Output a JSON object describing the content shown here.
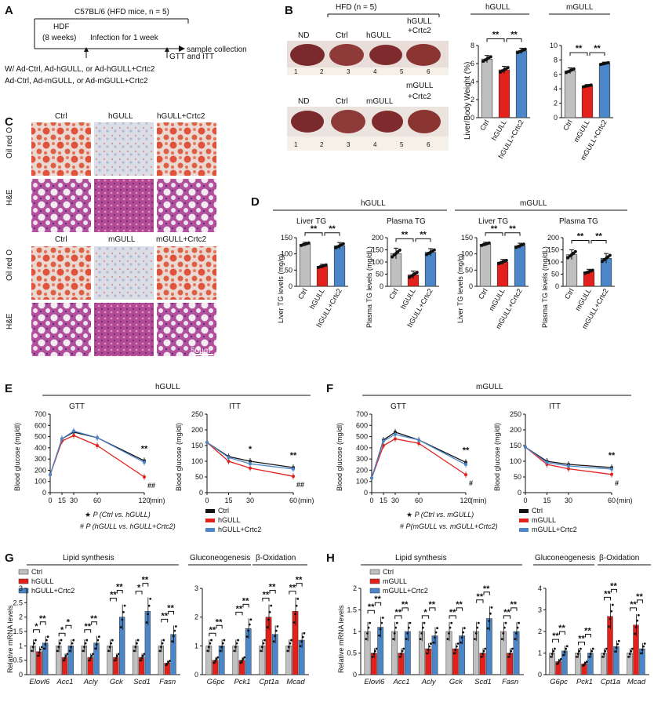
{
  "colors": {
    "ctrl": "#c0c0c0",
    "red": "#e3201b",
    "blue": "#4a86c8",
    "black": "#111111"
  },
  "panelA": {
    "label": "A",
    "strain": "C57BL/6 (HFD mice, n = 5)",
    "hdf": "HDF",
    "weeks": "(8 weeks)",
    "infection": "Infection for 1 week",
    "collection": "sample collection",
    "tests": "GTT and ITT",
    "groups1": "W/ Ad-Ctrl, Ad-hGULL, or Ad-hGULL+Crtc2",
    "groups2": "Ad-Ctrl, Ad-mGULL, or Ad-mGULL+Crtc2"
  },
  "panelB": {
    "label": "B",
    "header": "HFD (n = 5)",
    "row1": [
      "ND",
      "Ctrl",
      "hGULL",
      "hGULL",
      "+Crtc2"
    ],
    "row2": [
      "ND",
      "Ctrl",
      "mGULL",
      "mGULL",
      "+Crtc2"
    ],
    "ruler": [
      "1",
      "2",
      "3",
      "4",
      "5",
      "6"
    ],
    "ylabel": "Liver/Body Weight (%)",
    "sig": "**"
  },
  "panelC": {
    "label": "C",
    "top_cols": [
      "Ctrl",
      "hGULL",
      "hGULL+Crtc2"
    ],
    "bottom_cols": [
      "Ctrl",
      "mGULL",
      "mGULL+Crtc2"
    ],
    "rows": [
      "Oil red O",
      "H&E"
    ],
    "scale": "50μm"
  },
  "panelD": {
    "label": "D",
    "groupH": "hGULL",
    "groupM": "mGULL",
    "liver": "Liver TG",
    "plasma": "Plasma TG",
    "ylab_liver": "Liver TG levels (mg/g)",
    "ylab_plasma": "Plasma TG levels (mg/dL)"
  },
  "panelE": {
    "label": "E",
    "group": "hGULL",
    "gtt": "GTT",
    "itt": "ITT",
    "ylabel": "Blood glucose (mg/dl)",
    "note1": "P (Ctrl vs. hGULL)",
    "note2": "P (hGULL vs. hGULL+Crtc2)",
    "legend": [
      "Ctrl",
      "hGULL",
      "hGULL+Crtc2"
    ]
  },
  "panelF": {
    "label": "F",
    "group": "mGULL",
    "gtt": "GTT",
    "itt": "ITT",
    "ylabel": "Blood glucose (mg/dl)",
    "note1": "P (Ctrl vs. mGULL)",
    "note2": "P(mGULL vs. mGULL+Crtc2)",
    "legend": [
      "Ctrl",
      "mGULL",
      "mGULL+Crtc2"
    ]
  },
  "panelG": {
    "label": "G",
    "legend": [
      "Ctrl",
      "hGULL",
      "hGULL+Crtc2"
    ]
  },
  "panelH": {
    "label": "H",
    "legend": [
      "Ctrl",
      "mGULL",
      "mGULL+Crtc2"
    ]
  },
  "mrna": {
    "ylabel": "Relative mRNA levels",
    "lipid": "Lipid synthesis",
    "gluco": "Gluconeogenesis",
    "box": "β-Oxidation"
  },
  "chart_data": [
    {
      "id": "B-hGULL",
      "type": "bar",
      "title": "hGULL",
      "ylabel": "Liver/Body Weight (%)",
      "categories": [
        "Ctrl",
        "hGULL",
        "hGULL+Crtc2"
      ],
      "values": [
        6.5,
        5.3,
        7.4
      ],
      "errors": [
        0.4,
        0.4,
        0.3
      ],
      "ylim": [
        0,
        8
      ],
      "yticks": [
        0,
        2,
        4,
        6,
        8
      ]
    },
    {
      "id": "B-mGULL",
      "type": "bar",
      "title": "mGULL",
      "ylabel": "",
      "categories": [
        "Ctrl",
        "mGULL",
        "mGULL+Crtc2"
      ],
      "values": [
        6.5,
        4.4,
        7.5
      ],
      "errors": [
        0.4,
        0.2,
        0.2
      ],
      "ylim": [
        0,
        10
      ],
      "yticks": [
        0,
        2,
        4,
        6,
        8,
        10
      ]
    },
    {
      "id": "D-hLiver",
      "type": "bar",
      "title": "Liver TG",
      "ylabel": "Liver TG levels (mg/g)",
      "categories": [
        "Ctrl",
        "hGULL",
        "hGULL+Crtc2"
      ],
      "values": [
        130,
        62,
        125
      ],
      "errors": [
        6,
        6,
        10
      ],
      "ylim": [
        0,
        150
      ],
      "yticks": [
        0,
        50,
        100,
        150
      ]
    },
    {
      "id": "D-hPlasma",
      "type": "bar",
      "title": "Plasma TG",
      "ylabel": "Plasma TG levels (mg/dL)",
      "categories": [
        "Ctrl",
        "hGULL",
        "hGULL+Crtc2"
      ],
      "values": [
        135,
        47,
        140
      ],
      "errors": [
        22,
        16,
        15
      ],
      "ylim": [
        0,
        200
      ],
      "yticks": [
        0,
        50,
        100,
        150,
        200
      ]
    },
    {
      "id": "D-mLiver",
      "type": "bar",
      "title": "Liver TG",
      "ylabel": "Liver TG levels (mg/g)",
      "categories": [
        "Ctrl",
        "mGULL",
        "mGULL+Crtc2"
      ],
      "values": [
        130,
        75,
        125
      ],
      "errors": [
        6,
        8,
        8
      ],
      "ylim": [
        0,
        150
      ],
      "yticks": [
        0,
        50,
        100,
        150
      ]
    },
    {
      "id": "D-mPlasma",
      "type": "bar",
      "title": "Plasma TG",
      "ylabel": "Plasma TG levels (mg/dL)",
      "categories": [
        "Ctrl",
        "mGULL",
        "mGULL+Crtc2"
      ],
      "values": [
        130,
        60,
        115
      ],
      "errors": [
        20,
        10,
        20
      ],
      "ylim": [
        0,
        200
      ],
      "yticks": [
        0,
        50,
        100,
        150,
        200
      ]
    },
    {
      "id": "E-GTT",
      "type": "line",
      "title": "GTT",
      "xlabel": "(min)",
      "ylabel": "Blood glucose (mg/dl)",
      "x": [
        0,
        15,
        30,
        60,
        120
      ],
      "xticks": [
        0,
        15,
        30,
        60,
        120
      ],
      "ylim": [
        0,
        700
      ],
      "yticks": [
        0,
        100,
        200,
        300,
        400,
        500,
        600,
        700
      ],
      "series": [
        {
          "name": "Ctrl",
          "values": [
            160,
            480,
            540,
            490,
            285
          ]
        },
        {
          "name": "hGULL",
          "values": [
            160,
            460,
            510,
            420,
            140
          ]
        },
        {
          "name": "hGULL+Crtc2",
          "values": [
            160,
            480,
            550,
            490,
            270
          ]
        }
      ],
      "annotations": [
        {
          "x": 120,
          "text": "**"
        },
        {
          "x": 120,
          "text": "##"
        }
      ]
    },
    {
      "id": "E-ITT",
      "type": "line",
      "title": "ITT",
      "xlabel": "(min)",
      "ylabel": "Blood glucose (mg/dl)",
      "x": [
        0,
        15,
        30,
        60
      ],
      "xticks": [
        0,
        15,
        30,
        60
      ],
      "ylim": [
        0,
        250
      ],
      "yticks": [
        0,
        50,
        100,
        150,
        200,
        250
      ],
      "series": [
        {
          "name": "Ctrl",
          "values": [
            160,
            115,
            100,
            80
          ]
        },
        {
          "name": "hGULL",
          "values": [
            160,
            100,
            78,
            52
          ]
        },
        {
          "name": "hGULL+Crtc2",
          "values": [
            160,
            112,
            92,
            75
          ]
        }
      ],
      "annotations": [
        {
          "x": 30,
          "text": "*"
        },
        {
          "x": 60,
          "text": "**"
        },
        {
          "x": 60,
          "text": "##"
        }
      ]
    },
    {
      "id": "F-GTT",
      "type": "line",
      "title": "GTT",
      "xlabel": "(min)",
      "ylabel": "Blood glucose (mg/dl)",
      "x": [
        0,
        15,
        30,
        60,
        120
      ],
      "xticks": [
        0,
        15,
        30,
        60,
        120
      ],
      "ylim": [
        0,
        700
      ],
      "yticks": [
        0,
        100,
        200,
        300,
        400,
        500,
        600,
        700
      ],
      "series": [
        {
          "name": "Ctrl",
          "values": [
            130,
            470,
            540,
            470,
            270
          ]
        },
        {
          "name": "mGULL",
          "values": [
            130,
            420,
            480,
            440,
            160
          ]
        },
        {
          "name": "mGULL+Crtc2",
          "values": [
            130,
            460,
            520,
            470,
            250
          ]
        }
      ],
      "annotations": [
        {
          "x": 120,
          "text": "**"
        },
        {
          "x": 120,
          "text": "#"
        }
      ]
    },
    {
      "id": "F-ITT",
      "type": "line",
      "title": "ITT",
      "xlabel": "(min)",
      "ylabel": "Blood glucose (mg/dl)",
      "x": [
        0,
        15,
        30,
        60
      ],
      "xticks": [
        0,
        15,
        30,
        60
      ],
      "ylim": [
        0,
        250
      ],
      "yticks": [
        0,
        50,
        100,
        150,
        200,
        250
      ],
      "series": [
        {
          "name": "Ctrl",
          "values": [
            145,
            100,
            90,
            80
          ]
        },
        {
          "name": "mGULL",
          "values": [
            145,
            90,
            76,
            58
          ]
        },
        {
          "name": "mGULL+Crtc2",
          "values": [
            145,
            96,
            85,
            75
          ]
        }
      ],
      "annotations": [
        {
          "x": 60,
          "text": "**"
        },
        {
          "x": 60,
          "text": "#"
        }
      ]
    },
    {
      "id": "G-lipid",
      "type": "bar",
      "ylabel": "Relative mRNA levels",
      "categories": [
        "Elovl6",
        "Acc1",
        "Acly",
        "Gck",
        "Scd1",
        "Fasn"
      ],
      "ylim": [
        0,
        3
      ],
      "yticks": [
        0,
        0.5,
        1,
        1.5,
        2,
        2.5,
        3
      ],
      "series": [
        {
          "name": "Ctrl",
          "values": [
            1.0,
            1.0,
            1.0,
            1.0,
            1.0,
            1.0
          ]
        },
        {
          "name": "hGULL",
          "values": [
            0.8,
            0.6,
            0.6,
            0.6,
            0.6,
            0.4
          ]
        },
        {
          "name": "hGULL+Crtc2",
          "values": [
            1.1,
            1.0,
            1.1,
            2.0,
            2.2,
            1.4
          ]
        }
      ],
      "significance": [
        "* / **",
        "* / *",
        "** / **",
        "** / **",
        "* / **",
        "** / **"
      ]
    },
    {
      "id": "G-gluco-box",
      "type": "bar",
      "ylabel": "",
      "categories": [
        "G6pc",
        "Pck1",
        "Cpt1a",
        "Mcad"
      ],
      "ylim": [
        0,
        3
      ],
      "yticks": [
        0,
        1,
        2,
        3
      ],
      "series": [
        {
          "name": "Ctrl",
          "values": [
            1.0,
            1.0,
            1.0,
            1.0
          ]
        },
        {
          "name": "hGULL",
          "values": [
            0.5,
            0.5,
            2.0,
            2.2
          ]
        },
        {
          "name": "hGULL+Crtc2",
          "values": [
            1.0,
            1.6,
            1.4,
            1.2
          ]
        }
      ],
      "significance": [
        "** / **",
        "** / **",
        "** / **",
        "** / **"
      ]
    },
    {
      "id": "H-lipid",
      "type": "bar",
      "ylabel": "Relative mRNA levels",
      "categories": [
        "Elovl6",
        "Acc1",
        "Acly",
        "Gck",
        "Scd1",
        "Fasn"
      ],
      "ylim": [
        0,
        2
      ],
      "yticks": [
        0,
        0.5,
        1,
        1.5,
        2
      ],
      "series": [
        {
          "name": "Ctrl",
          "values": [
            1.0,
            1.0,
            1.0,
            1.0,
            1.0,
            1.0
          ]
        },
        {
          "name": "mGULL",
          "values": [
            0.5,
            0.5,
            0.6,
            0.6,
            0.5,
            0.5
          ]
        },
        {
          "name": "mGULL+Crtc2",
          "values": [
            1.1,
            1.0,
            0.9,
            0.9,
            1.3,
            1.0
          ]
        }
      ],
      "significance": [
        "** / **",
        "** / **",
        "* / **",
        "** / **",
        "** / **",
        "** / **"
      ]
    },
    {
      "id": "H-gluco-box",
      "type": "bar",
      "ylabel": "",
      "categories": [
        "G6pc",
        "Pck1",
        "Cpt1a",
        "Mcad"
      ],
      "ylim": [
        0,
        4
      ],
      "yticks": [
        0,
        1,
        2,
        3,
        4
      ],
      "series": [
        {
          "name": "Ctrl",
          "values": [
            1.0,
            1.0,
            1.0,
            1.0
          ]
        },
        {
          "name": "mGULL",
          "values": [
            0.6,
            0.5,
            2.7,
            2.3
          ]
        },
        {
          "name": "mGULL+Crtc2",
          "values": [
            1.1,
            1.0,
            1.3,
            1.2
          ]
        }
      ],
      "significance": [
        "** / **",
        "** / **",
        "** / **",
        "** / **"
      ]
    }
  ]
}
